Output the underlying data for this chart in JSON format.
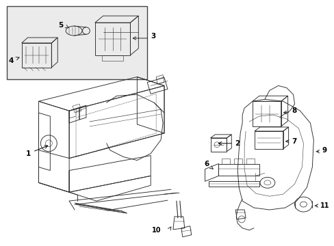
{
  "bg_color": "#ffffff",
  "line_color": "#2a2a2a",
  "label_color": "#000000",
  "inset_bg": "#ebebeb",
  "inset_border": "#444444",
  "fig_width": 4.89,
  "fig_height": 3.6,
  "lw": 0.65
}
